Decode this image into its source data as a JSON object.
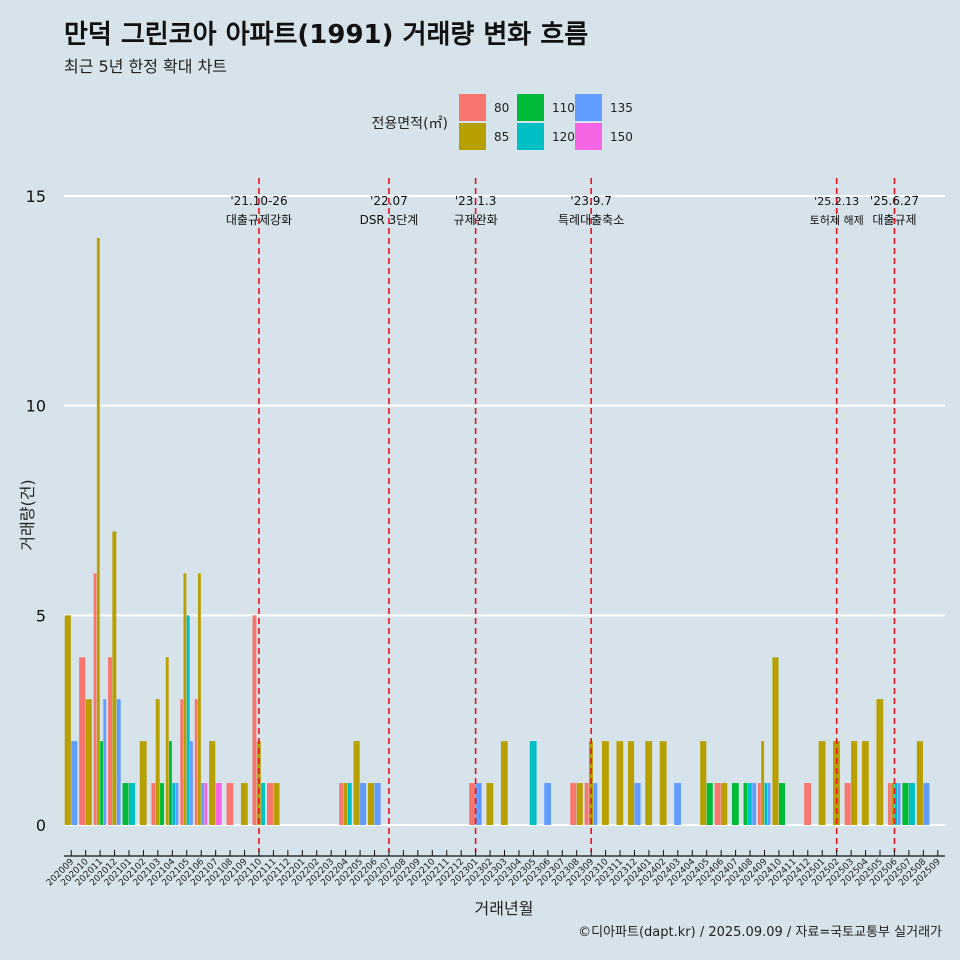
{
  "chart_data": {
    "type": "bar",
    "title": "만덕 그린코아 아파트(1991) 거래량 변화 흐름",
    "subtitle": "최근 5년 한정 확대 차트",
    "xlabel": "거래년월",
    "ylabel": "거래량(건)",
    "ylim": [
      0,
      15
    ],
    "y_ticks": [
      0,
      5,
      10,
      15
    ],
    "grid": true,
    "legend": {
      "title": "전용면적(㎡)",
      "placement": "top",
      "entries": [
        {
          "name": "80",
          "color": "#f8766d"
        },
        {
          "name": "85",
          "color": "#b79f00"
        },
        {
          "name": "110",
          "color": "#00ba38"
        },
        {
          "name": "120",
          "color": "#00bfc4"
        },
        {
          "name": "135",
          "color": "#619cff"
        },
        {
          "name": "150",
          "color": "#f564e3"
        }
      ]
    },
    "categories": [
      "202009",
      "202010",
      "202011",
      "202012",
      "202101",
      "202102",
      "202103",
      "202104",
      "202105",
      "202106",
      "202107",
      "202108",
      "202109",
      "202110",
      "202111",
      "202112",
      "202201",
      "202202",
      "202203",
      "202204",
      "202205",
      "202206",
      "202207",
      "202208",
      "202209",
      "202210",
      "202211",
      "202212",
      "202301",
      "202302",
      "202303",
      "202304",
      "202305",
      "202306",
      "202307",
      "202308",
      "202309",
      "202310",
      "202311",
      "202312",
      "202401",
      "202402",
      "202403",
      "202404",
      "202405",
      "202406",
      "202407",
      "202408",
      "202409",
      "202410",
      "202411",
      "202412",
      "202501",
      "202502",
      "202503",
      "202504",
      "202505",
      "202506",
      "202507",
      "202508",
      "202509"
    ],
    "series": [
      {
        "name": "80",
        "values": [
          0,
          4,
          6,
          4,
          0,
          0,
          1,
          0,
          3,
          3,
          0,
          1,
          0,
          5,
          1,
          0,
          0,
          0,
          0,
          1,
          0,
          0,
          0,
          0,
          0,
          0,
          0,
          0,
          1,
          0,
          0,
          0,
          0,
          0,
          0,
          1,
          1,
          0,
          0,
          0,
          0,
          0,
          0,
          0,
          0,
          1,
          0,
          0,
          1,
          0,
          0,
          1,
          0,
          0,
          1,
          0,
          0,
          1,
          0,
          0,
          0
        ]
      },
      {
        "name": "85",
        "values": [
          5,
          3,
          14,
          7,
          0,
          2,
          3,
          4,
          6,
          6,
          2,
          0,
          1,
          2,
          1,
          0,
          0,
          0,
          0,
          1,
          2,
          1,
          0,
          0,
          0,
          0,
          0,
          0,
          0,
          1,
          2,
          0,
          0,
          0,
          0,
          1,
          2,
          2,
          2,
          2,
          2,
          2,
          0,
          0,
          2,
          1,
          0,
          0,
          2,
          4,
          0,
          0,
          2,
          2,
          2,
          2,
          3,
          1,
          0,
          2,
          0
        ]
      },
      {
        "name": "110",
        "values": [
          0,
          0,
          2,
          0,
          1,
          0,
          1,
          2,
          0,
          0,
          0,
          0,
          0,
          0,
          0,
          0,
          0,
          0,
          0,
          0,
          0,
          0,
          0,
          0,
          0,
          0,
          0,
          0,
          0,
          0,
          0,
          0,
          0,
          0,
          0,
          0,
          0,
          0,
          0,
          0,
          0,
          0,
          0,
          0,
          1,
          0,
          1,
          1,
          0,
          1,
          0,
          0,
          0,
          0,
          0,
          0,
          0,
          0,
          1,
          0,
          0
        ]
      },
      {
        "name": "120",
        "values": [
          0,
          0,
          0,
          0,
          1,
          0,
          0,
          1,
          5,
          0,
          0,
          0,
          0,
          1,
          0,
          0,
          0,
          0,
          0,
          1,
          0,
          0,
          0,
          0,
          0,
          0,
          0,
          0,
          0,
          0,
          0,
          0,
          2,
          0,
          0,
          0,
          0,
          0,
          0,
          0,
          0,
          0,
          0,
          0,
          0,
          0,
          0,
          1,
          1,
          0,
          0,
          0,
          0,
          0,
          0,
          0,
          0,
          1,
          1,
          0,
          0
        ]
      },
      {
        "name": "135",
        "values": [
          2,
          0,
          3,
          3,
          0,
          0,
          0,
          1,
          2,
          1,
          0,
          0,
          0,
          0,
          0,
          0,
          0,
          0,
          0,
          0,
          1,
          1,
          0,
          0,
          0,
          0,
          0,
          0,
          1,
          0,
          0,
          0,
          0,
          1,
          0,
          0,
          1,
          0,
          0,
          1,
          0,
          0,
          1,
          0,
          0,
          0,
          0,
          1,
          1,
          0,
          0,
          0,
          0,
          0,
          0,
          0,
          0,
          1,
          0,
          1,
          0
        ]
      },
      {
        "name": "150",
        "values": [
          0,
          0,
          0,
          0,
          0,
          0,
          0,
          0,
          0,
          1,
          1,
          0,
          0,
          0,
          0,
          0,
          0,
          0,
          0,
          0,
          0,
          0,
          0,
          0,
          0,
          0,
          0,
          0,
          0,
          0,
          0,
          0,
          0,
          0,
          0,
          0,
          0,
          0,
          0,
          0,
          0,
          0,
          0,
          0,
          0,
          0,
          0,
          0,
          0,
          0,
          0,
          0,
          0,
          0,
          0,
          0,
          0,
          0,
          0,
          0,
          0
        ]
      }
    ],
    "annotations": [
      {
        "date": "'21.10-26",
        "label": "대출규제강화",
        "at": "202110"
      },
      {
        "date": "'22.07",
        "label": "DSR 3단계",
        "at": "202207"
      },
      {
        "date": "'23.1.3",
        "label": "규제완화",
        "at": "202301"
      },
      {
        "date": "'23.9.7",
        "label": "특례대출축소",
        "at": "202309"
      },
      {
        "date": "'25.2.13",
        "label": "토허제 해제",
        "at": "202502"
      },
      {
        "date": "'25.6.27",
        "label": "대출규제",
        "at": "202506"
      }
    ],
    "caption": "©디아파트(dapt.kr) / 2025.09.09 / 자료=국토교통부 실거래가"
  }
}
